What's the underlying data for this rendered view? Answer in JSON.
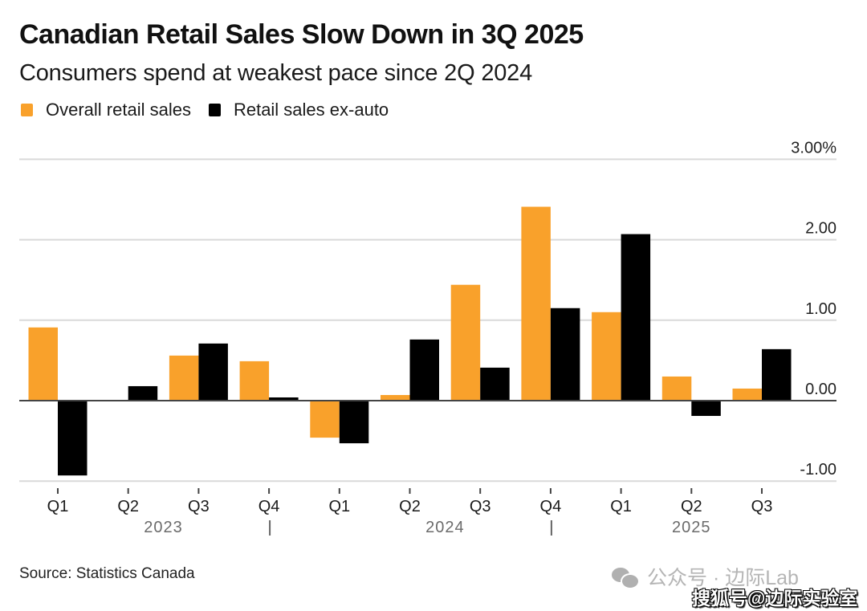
{
  "header": {
    "title": "Canadian Retail Sales Slow Down in 3Q 2025",
    "subtitle": "Consumers spend at weakest pace since 2Q 2024"
  },
  "legend": [
    {
      "label": "Overall retail sales",
      "color": "#F9A12B"
    },
    {
      "label": "Retail sales ex-auto",
      "color": "#000000"
    }
  ],
  "chart_data": {
    "type": "bar",
    "title": "Canadian Retail Sales Slow Down in 3Q 2025",
    "subtitle": "Consumers spend at weakest pace since 2Q 2024",
    "xlabel": "",
    "ylabel": "",
    "categories": [
      "Q1",
      "Q2",
      "Q3",
      "Q4",
      "Q1",
      "Q2",
      "Q3",
      "Q4",
      "Q1",
      "Q2",
      "Q3"
    ],
    "year_groups": [
      {
        "label": "2023",
        "quarters": 4
      },
      {
        "label": "2024",
        "quarters": 4
      },
      {
        "label": "2025",
        "quarters": 3
      }
    ],
    "series": [
      {
        "name": "Overall retail sales",
        "color": "#F9A12B",
        "values": [
          0.91,
          0.0,
          0.56,
          0.49,
          -0.46,
          0.07,
          1.44,
          2.41,
          1.1,
          0.3,
          0.15
        ]
      },
      {
        "name": "Retail sales ex-auto",
        "color": "#000000",
        "values": [
          -0.93,
          0.18,
          0.71,
          0.04,
          -0.53,
          0.76,
          0.41,
          1.15,
          2.07,
          -0.19,
          0.64
        ]
      }
    ],
    "ylim": [
      -1.0,
      3.0
    ],
    "yticks": [
      {
        "value": 3.0,
        "label": "3.00%"
      },
      {
        "value": 2.0,
        "label": "2.00"
      },
      {
        "value": 1.0,
        "label": "1.00"
      },
      {
        "value": 0.0,
        "label": "0.00"
      },
      {
        "value": -1.0,
        "label": "-1.00"
      }
    ],
    "y_axis_position": "right",
    "grid": true,
    "legend_position": "top-left"
  },
  "footer": {
    "source": "Source: Statistics Canada"
  },
  "watermarks": {
    "line1": "公众号 · 边际Lab",
    "line2": "搜狐号@边际实验室"
  }
}
